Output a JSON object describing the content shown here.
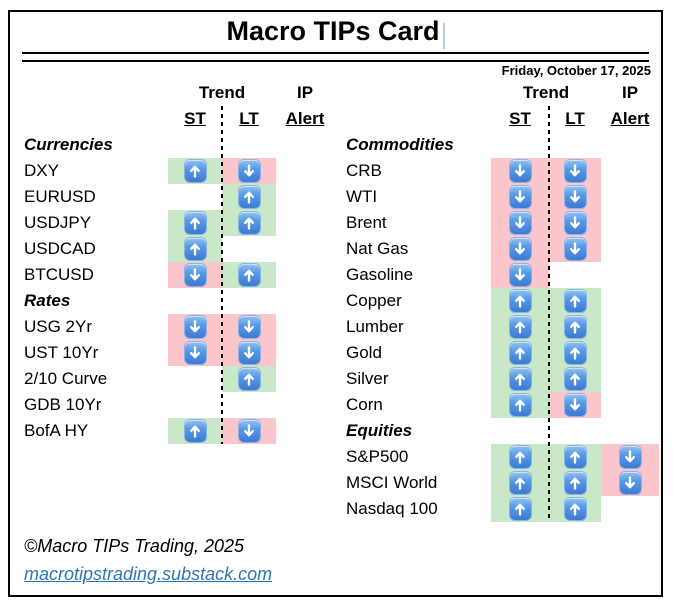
{
  "title": "Macro TIPs Card",
  "date": "Friday, October 17, 2025",
  "headers": {
    "trend": "Trend",
    "ip": "IP",
    "st": "ST",
    "lt": "LT",
    "alert": "Alert"
  },
  "footer": {
    "copyright": "©Macro TIPs Trading, 2025",
    "link": "macrotipstrading.substack.com"
  },
  "colors": {
    "up_fill": "#c8e8c7",
    "down_fill": "#fac5cb",
    "arrow_blue": "#3c7ad2",
    "link_blue": "#2e75b6"
  },
  "icons": {
    "up": "up-arrow-icon",
    "down": "down-arrow-icon"
  },
  "left_panel": {
    "sections": [
      {
        "name": "Currencies",
        "rows": [
          {
            "label": "DXY",
            "st": "up",
            "lt": "down",
            "alert": ""
          },
          {
            "label": "EURUSD",
            "st": "",
            "lt": "up",
            "alert": ""
          },
          {
            "label": "USDJPY",
            "st": "up",
            "lt": "up",
            "alert": ""
          },
          {
            "label": "USDCAD",
            "st": "up",
            "lt": "",
            "alert": ""
          },
          {
            "label": "BTCUSD",
            "st": "down",
            "lt": "up",
            "alert": ""
          }
        ]
      },
      {
        "name": "Rates",
        "rows": [
          {
            "label": "USG 2Yr",
            "st": "down",
            "lt": "down",
            "alert": ""
          },
          {
            "label": "UST 10Yr",
            "st": "down",
            "lt": "down",
            "alert": ""
          },
          {
            "label": "2/10 Curve",
            "st": "",
            "lt": "up",
            "alert": ""
          },
          {
            "label": "GDB 10Yr",
            "st": "",
            "lt": "",
            "alert": ""
          },
          {
            "label": "BofA HY",
            "st": "up",
            "lt": "down",
            "alert": ""
          }
        ]
      }
    ]
  },
  "right_panel": {
    "sections": [
      {
        "name": "Commodities",
        "rows": [
          {
            "label": "CRB",
            "st": "down",
            "lt": "down",
            "alert": ""
          },
          {
            "label": "WTI",
            "st": "down",
            "lt": "down",
            "alert": ""
          },
          {
            "label": "Brent",
            "st": "down",
            "lt": "down",
            "alert": ""
          },
          {
            "label": "Nat Gas",
            "st": "down",
            "lt": "down",
            "alert": ""
          },
          {
            "label": "Gasoline",
            "st": "down",
            "lt": "",
            "alert": ""
          },
          {
            "label": "Copper",
            "st": "up",
            "lt": "up",
            "alert": ""
          },
          {
            "label": "Lumber",
            "st": "up",
            "lt": "up",
            "alert": ""
          },
          {
            "label": "Gold",
            "st": "up",
            "lt": "up",
            "alert": ""
          },
          {
            "label": "Silver",
            "st": "up",
            "lt": "up",
            "alert": ""
          },
          {
            "label": "Corn",
            "st": "up",
            "lt": "down",
            "alert": ""
          }
        ]
      },
      {
        "name": "Equities",
        "rows": [
          {
            "label": "S&P500",
            "st": "up",
            "lt": "up",
            "alert": "down"
          },
          {
            "label": "MSCI World",
            "st": "up",
            "lt": "up",
            "alert": "down"
          },
          {
            "label": "Nasdaq 100",
            "st": "up",
            "lt": "up",
            "alert": ""
          }
        ]
      }
    ]
  }
}
